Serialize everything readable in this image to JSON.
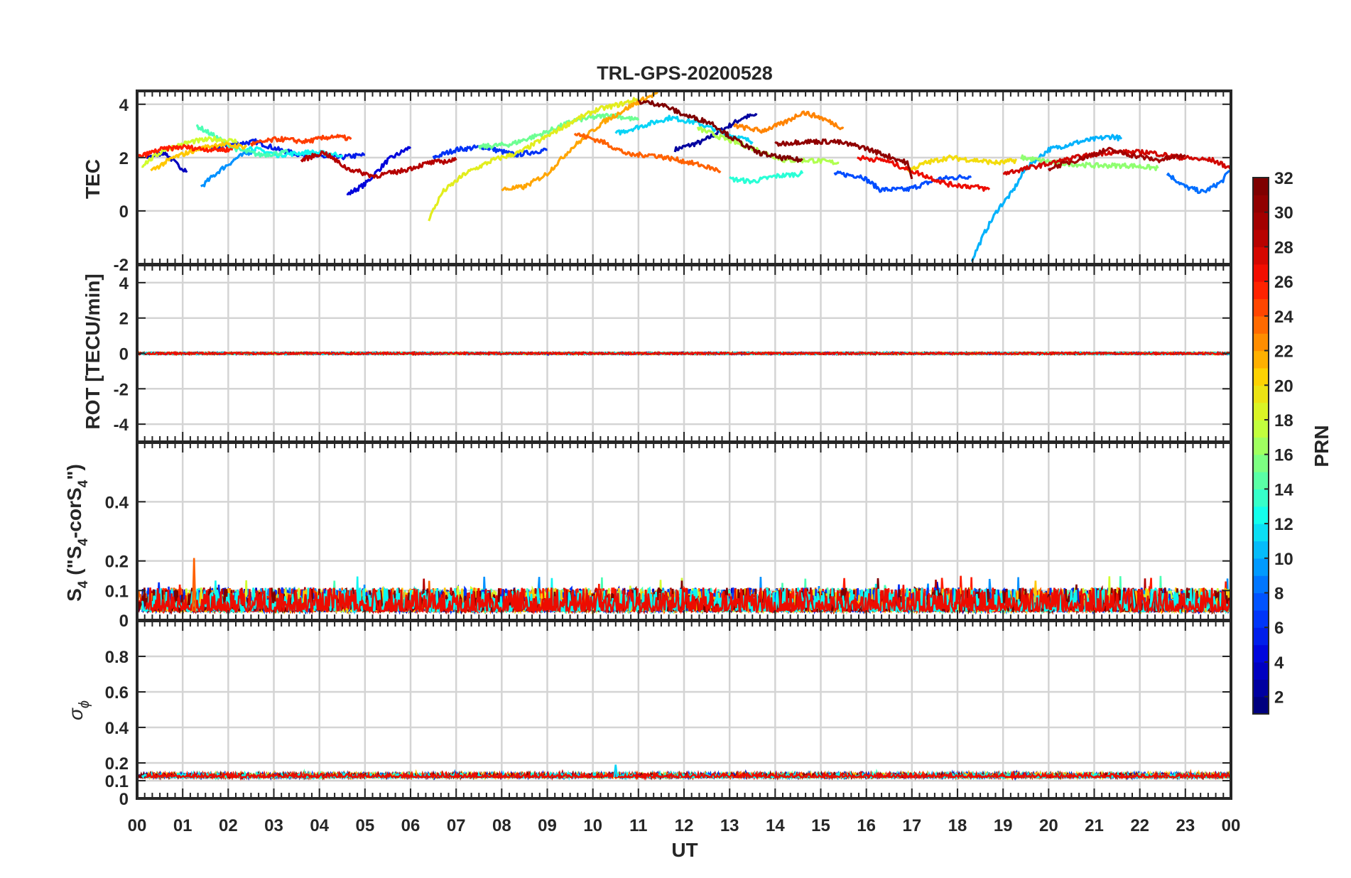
{
  "colors": {
    "axis": "#262626",
    "grid": "#d4d4d4",
    "jet": [
      "#00007f",
      "#0000d9",
      "#0040ff",
      "#00a0ff",
      "#10ffef",
      "#70ff8f",
      "#cfff30",
      "#ffd000",
      "#ff7000",
      "#ff1000",
      "#b00000",
      "#7f0000"
    ]
  },
  "chart_data": {
    "type": "line",
    "title": "TRL-GPS-20200528",
    "x_label": "UT",
    "x_ticks": [
      "00",
      "01",
      "02",
      "03",
      "04",
      "05",
      "06",
      "07",
      "08",
      "09",
      "10",
      "11",
      "12",
      "13",
      "14",
      "15",
      "16",
      "17",
      "18",
      "19",
      "20",
      "21",
      "22",
      "23",
      "00"
    ],
    "xlim": [
      0,
      24
    ],
    "colorbar": {
      "label": "PRN",
      "ticks": [
        "2",
        "4",
        "6",
        "8",
        "10",
        "12",
        "14",
        "16",
        "18",
        "20",
        "22",
        "24",
        "26",
        "28",
        "30",
        "32"
      ],
      "range": [
        1,
        32
      ]
    },
    "panels": [
      {
        "ylabel": "TEC",
        "ylim": [
          -2,
          4.5
        ],
        "yticks": [
          "-2",
          "0",
          "2",
          "4"
        ],
        "series": [
          {
            "prn": 2,
            "points": [
              [
                11.8,
                2.3
              ],
              [
                12.4,
                2.6
              ],
              [
                12.9,
                3.1
              ],
              [
                13.3,
                3.5
              ],
              [
                13.6,
                3.6
              ]
            ]
          },
          {
            "prn": 3,
            "points": [
              [
                0.2,
                2.0
              ],
              [
                0.6,
                2.2
              ],
              [
                0.9,
                1.7
              ],
              [
                1.1,
                1.5
              ]
            ]
          },
          {
            "prn": 4,
            "points": [
              [
                4.6,
                0.6
              ],
              [
                5.0,
                1.0
              ],
              [
                5.5,
                1.9
              ],
              [
                6.0,
                2.4
              ]
            ]
          },
          {
            "prn": 5,
            "points": [
              [
                1.6,
                2.3
              ],
              [
                2.1,
                2.5
              ],
              [
                2.6,
                2.6
              ],
              [
                3.1,
                2.3
              ],
              [
                3.6,
                2.1
              ],
              [
                4.4,
                2.0
              ],
              [
                5.0,
                2.1
              ]
            ]
          },
          {
            "prn": 6,
            "points": [
              [
                6.5,
                2.0
              ],
              [
                7.0,
                2.3
              ],
              [
                7.6,
                2.4
              ],
              [
                8.3,
                2.1
              ],
              [
                9.0,
                2.3
              ]
            ]
          },
          {
            "prn": 7,
            "points": [
              [
                15.3,
                1.4
              ],
              [
                15.9,
                1.3
              ],
              [
                16.3,
                0.8
              ],
              [
                16.9,
                0.8
              ],
              [
                17.6,
                1.2
              ],
              [
                18.3,
                1.3
              ]
            ]
          },
          {
            "prn": 8,
            "points": [
              [
                22.6,
                1.4
              ],
              [
                23.0,
                0.9
              ],
              [
                23.4,
                0.7
              ],
              [
                23.8,
                1.1
              ],
              [
                24.0,
                1.6
              ]
            ]
          },
          {
            "prn": 9,
            "points": [
              [
                1.4,
                0.9
              ],
              [
                1.8,
                1.5
              ],
              [
                2.2,
                2.0
              ],
              [
                2.6,
                2.3
              ]
            ]
          },
          {
            "prn": 10,
            "points": [
              [
                18.3,
                -1.9
              ],
              [
                18.6,
                -0.8
              ],
              [
                18.9,
                0.1
              ],
              [
                19.2,
                0.7
              ],
              [
                19.5,
                1.6
              ],
              [
                20.0,
                2.3
              ],
              [
                20.7,
                2.6
              ],
              [
                21.4,
                2.8
              ],
              [
                21.6,
                2.7
              ]
            ]
          },
          {
            "prn": 11,
            "points": [
              [
                10.5,
                2.9
              ],
              [
                11.1,
                3.2
              ],
              [
                11.7,
                3.5
              ],
              [
                12.3,
                3.3
              ],
              [
                12.9,
                2.9
              ],
              [
                13.5,
                2.6
              ]
            ]
          },
          {
            "prn": 12,
            "points": [
              [
                2.4,
                2.4
              ],
              [
                3.1,
                2.1
              ],
              [
                3.8,
                2.2
              ],
              [
                4.5,
                2.1
              ]
            ]
          },
          {
            "prn": 13,
            "points": [
              [
                13.0,
                1.2
              ],
              [
                13.5,
                1.1
              ],
              [
                14.0,
                1.3
              ],
              [
                14.6,
                1.4
              ]
            ]
          },
          {
            "prn": 14,
            "points": [
              [
                1.3,
                3.2
              ],
              [
                1.7,
                2.8
              ],
              [
                2.2,
                2.3
              ],
              [
                2.7,
                2.1
              ],
              [
                3.3,
                2.2
              ]
            ]
          },
          {
            "prn": 15,
            "points": [
              [
                7.5,
                2.4
              ],
              [
                8.2,
                2.5
              ],
              [
                8.9,
                2.9
              ],
              [
                9.6,
                3.4
              ],
              [
                10.4,
                3.6
              ],
              [
                11.0,
                3.4
              ]
            ]
          },
          {
            "prn": 16,
            "points": [
              [
                19.4,
                2.0
              ],
              [
                20.2,
                1.8
              ],
              [
                21.0,
                1.7
              ],
              [
                21.8,
                1.7
              ],
              [
                22.4,
                1.6
              ]
            ]
          },
          {
            "prn": 17,
            "points": [
              [
                12.3,
                3.1
              ],
              [
                12.9,
                2.7
              ],
              [
                13.6,
                2.3
              ],
              [
                14.2,
                1.9
              ],
              [
                14.8,
                1.9
              ],
              [
                15.4,
                1.8
              ]
            ]
          },
          {
            "prn": 18,
            "points": [
              [
                0.1,
                1.7
              ],
              [
                0.6,
                2.3
              ],
              [
                1.2,
                2.6
              ],
              [
                1.7,
                2.7
              ],
              [
                2.2,
                2.6
              ]
            ]
          },
          {
            "prn": 19,
            "points": [
              [
                6.4,
                -0.3
              ],
              [
                6.7,
                0.7
              ],
              [
                7.2,
                1.4
              ],
              [
                7.8,
                1.9
              ],
              [
                8.4,
                2.2
              ],
              [
                9.0,
                2.8
              ],
              [
                9.6,
                3.4
              ],
              [
                10.1,
                3.8
              ],
              [
                10.6,
                4.0
              ],
              [
                11.0,
                4.2
              ]
            ]
          },
          {
            "prn": 20,
            "points": [
              [
                16.9,
                1.5
              ],
              [
                17.3,
                1.8
              ],
              [
                17.8,
                2.0
              ],
              [
                18.4,
                1.9
              ],
              [
                18.9,
                1.8
              ],
              [
                19.3,
                1.9
              ]
            ]
          },
          {
            "prn": 21,
            "points": [
              [
                0.3,
                1.5
              ],
              [
                0.8,
                2.0
              ],
              [
                1.3,
                2.3
              ],
              [
                1.8,
                2.5
              ],
              [
                2.4,
                2.4
              ]
            ]
          },
          {
            "prn": 22,
            "points": [
              [
                8.0,
                0.8
              ],
              [
                8.5,
                0.9
              ],
              [
                9.0,
                1.4
              ],
              [
                9.5,
                2.3
              ],
              [
                10.2,
                3.3
              ],
              [
                10.9,
                4.0
              ],
              [
                11.5,
                4.5
              ]
            ]
          },
          {
            "prn": 23,
            "points": [
              [
                13.1,
                3.2
              ],
              [
                13.7,
                3.0
              ],
              [
                14.2,
                3.3
              ],
              [
                14.6,
                3.7
              ],
              [
                15.0,
                3.5
              ],
              [
                15.5,
                3.1
              ]
            ]
          },
          {
            "prn": 24,
            "points": [
              [
                9.6,
                2.9
              ],
              [
                10.2,
                2.6
              ],
              [
                10.8,
                2.1
              ],
              [
                11.3,
                2.1
              ],
              [
                11.9,
                1.9
              ],
              [
                12.4,
                1.7
              ],
              [
                12.8,
                1.5
              ]
            ]
          },
          {
            "prn": 25,
            "points": [
              [
                2.5,
                2.5
              ],
              [
                3.1,
                2.7
              ],
              [
                3.7,
                2.6
              ],
              [
                4.3,
                2.8
              ],
              [
                4.7,
                2.7
              ]
            ]
          },
          {
            "prn": 26,
            "points": [
              [
                0.0,
                2.0
              ],
              [
                0.5,
                2.3
              ],
              [
                1.0,
                2.4
              ],
              [
                1.6,
                2.3
              ],
              [
                2.1,
                2.3
              ]
            ]
          },
          {
            "prn": 27,
            "points": [
              [
                15.8,
                2.0
              ],
              [
                16.4,
                1.9
              ],
              [
                17.0,
                1.5
              ],
              [
                17.8,
                1.0
              ],
              [
                18.4,
                0.9
              ],
              [
                18.7,
                0.8
              ]
            ]
          },
          {
            "prn": 28,
            "points": [
              [
                19.0,
                1.4
              ],
              [
                19.8,
                1.7
              ],
              [
                20.6,
                2.0
              ],
              [
                21.3,
                2.2
              ],
              [
                22.2,
                2.2
              ],
              [
                22.9,
                2.0
              ],
              [
                23.6,
                1.9
              ],
              [
                24.0,
                1.6
              ]
            ]
          },
          {
            "prn": 29,
            "points": [
              [
                3.6,
                1.9
              ],
              [
                4.1,
                2.2
              ],
              [
                4.6,
                1.6
              ],
              [
                5.2,
                1.3
              ],
              [
                5.8,
                1.5
              ],
              [
                6.4,
                1.8
              ],
              [
                7.0,
                1.9
              ]
            ]
          },
          {
            "prn": 30,
            "points": [
              [
                20.0,
                1.6
              ],
              [
                20.6,
                1.9
              ],
              [
                21.3,
                2.3
              ],
              [
                21.8,
                2.1
              ],
              [
                22.4,
                1.9
              ],
              [
                23.0,
                2.1
              ]
            ]
          },
          {
            "prn": 31,
            "points": [
              [
                14.0,
                2.5
              ],
              [
                14.6,
                2.6
              ],
              [
                15.3,
                2.6
              ],
              [
                15.9,
                2.4
              ],
              [
                16.4,
                2.1
              ],
              [
                16.9,
                1.8
              ],
              [
                17.0,
                1.2
              ]
            ]
          },
          {
            "prn": 32,
            "points": [
              [
                11.0,
                4.1
              ],
              [
                11.5,
                4.0
              ],
              [
                12.0,
                3.6
              ],
              [
                12.6,
                3.3
              ],
              [
                13.0,
                2.8
              ],
              [
                13.6,
                2.2
              ],
              [
                14.1,
                2.0
              ],
              [
                14.6,
                1.9
              ]
            ]
          }
        ]
      },
      {
        "ylabel": "ROT [TECU/min]",
        "ylim": [
          -5,
          5
        ],
        "yticks": [
          "-4",
          "-2",
          "0",
          "2",
          "4"
        ],
        "band": {
          "level": 0,
          "noise": 0.09
        }
      },
      {
        "ylabel_main": "S",
        "ylabel_sub": "4",
        "ylabel_mid": " (\"S",
        "ylabel_mid_sub": "4",
        "ylabel_tail": "-corS",
        "ylabel_tail_sub": "4",
        "ylabel_end": "\")",
        "ylim": [
          0,
          0.6
        ],
        "yticks": [
          "0",
          "0.1",
          "0.2",
          "0.4"
        ],
        "yticks_values": [
          0,
          0.1,
          0.2,
          0.4
        ],
        "band": {
          "level": 0.03,
          "noise": 0.05,
          "peak": 0.21
        }
      },
      {
        "ylabel_main": "σ",
        "ylabel_sub": "ϕ",
        "ylim": [
          0,
          1.0
        ],
        "yticks": [
          "0",
          "0.1",
          "0.2",
          "0.4",
          "0.6",
          "0.8"
        ],
        "yticks_values": [
          0,
          0.1,
          0.2,
          0.4,
          0.6,
          0.8
        ],
        "band": {
          "level": 0.12,
          "noise": 0.012,
          "peak": 0.19
        }
      }
    ]
  }
}
